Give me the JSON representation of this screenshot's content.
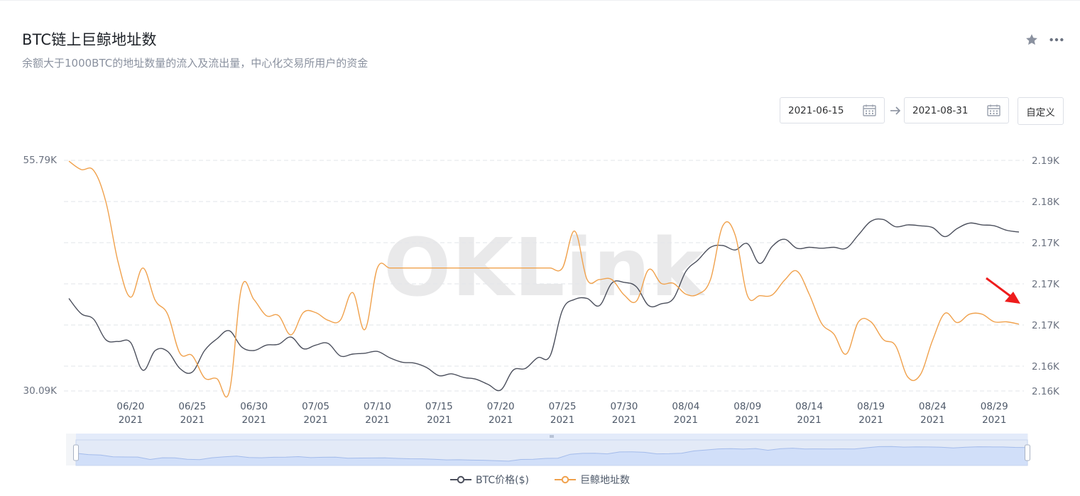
{
  "header": {
    "title": "BTC链上巨鲸地址数",
    "subtitle": "余额大于1000BTC的地址数量的流入及流出量，中心化交易所用户的资金"
  },
  "icons": {
    "star": "star-icon",
    "more": "more-icon",
    "calendar": "calendar-icon",
    "arrow": "arrow-right-icon"
  },
  "date_range": {
    "start": "2021-06-15",
    "end": "2021-08-31",
    "custom_label": "自定义"
  },
  "watermark": "OKLink",
  "colors": {
    "btc_price": "#4b4f5c",
    "whale": "#f0a14c",
    "grid": "#e2e5ea",
    "axis_text": "#6b7280",
    "annotation": "#ee1c1c",
    "zoom_fill": "#dbe6fb"
  },
  "chart_data": {
    "type": "line",
    "title": "",
    "ylim_left": [
      30090,
      55790
    ],
    "ylim_right": [
      2160,
      2190
    ],
    "y_left_ticks": [
      "55.79K",
      "30.09K"
    ],
    "y_right_ticks": [
      "2.19K",
      "2.18K",
      "2.17K",
      "2.17K",
      "2.17K",
      "2.16K",
      "2.16K"
    ],
    "x_ticks": [
      {
        "date": "06/20",
        "year": "2021"
      },
      {
        "date": "06/25",
        "year": "2021"
      },
      {
        "date": "06/30",
        "year": "2021"
      },
      {
        "date": "07/05",
        "year": "2021"
      },
      {
        "date": "07/10",
        "year": "2021"
      },
      {
        "date": "07/15",
        "year": "2021"
      },
      {
        "date": "07/20",
        "year": "2021"
      },
      {
        "date": "07/25",
        "year": "2021"
      },
      {
        "date": "07/30",
        "year": "2021"
      },
      {
        "date": "08/04",
        "year": "2021"
      },
      {
        "date": "08/09",
        "year": "2021"
      },
      {
        "date": "08/14",
        "year": "2021"
      },
      {
        "date": "08/19",
        "year": "2021"
      },
      {
        "date": "08/24",
        "year": "2021"
      },
      {
        "date": "08/29",
        "year": "2021"
      }
    ],
    "x": [
      "2021-06-15",
      "2021-06-16",
      "2021-06-17",
      "2021-06-18",
      "2021-06-19",
      "2021-06-20",
      "2021-06-21",
      "2021-06-22",
      "2021-06-23",
      "2021-06-24",
      "2021-06-25",
      "2021-06-26",
      "2021-06-27",
      "2021-06-28",
      "2021-06-29",
      "2021-06-30",
      "2021-07-01",
      "2021-07-02",
      "2021-07-03",
      "2021-07-04",
      "2021-07-05",
      "2021-07-06",
      "2021-07-07",
      "2021-07-08",
      "2021-07-09",
      "2021-07-10",
      "2021-07-11",
      "2021-07-12",
      "2021-07-13",
      "2021-07-14",
      "2021-07-15",
      "2021-07-16",
      "2021-07-17",
      "2021-07-18",
      "2021-07-19",
      "2021-07-20",
      "2021-07-21",
      "2021-07-22",
      "2021-07-23",
      "2021-07-24",
      "2021-07-25",
      "2021-07-26",
      "2021-07-27",
      "2021-07-28",
      "2021-07-29",
      "2021-07-30",
      "2021-07-31",
      "2021-08-01",
      "2021-08-02",
      "2021-08-03",
      "2021-08-04",
      "2021-08-05",
      "2021-08-06",
      "2021-08-07",
      "2021-08-08",
      "2021-08-09",
      "2021-08-10",
      "2021-08-11",
      "2021-08-12",
      "2021-08-13",
      "2021-08-14",
      "2021-08-15",
      "2021-08-16",
      "2021-08-17",
      "2021-08-18",
      "2021-08-19",
      "2021-08-20",
      "2021-08-21",
      "2021-08-22",
      "2021-08-23",
      "2021-08-24",
      "2021-08-25",
      "2021-08-26",
      "2021-08-27",
      "2021-08-28",
      "2021-08-29",
      "2021-08-30",
      "2021-08-31"
    ],
    "series": [
      {
        "name": "BTC价格($)",
        "axis": "left",
        "values": [
          40400,
          38700,
          38100,
          35800,
          35600,
          35500,
          32400,
          34600,
          34500,
          32600,
          32200,
          34600,
          35900,
          36800,
          35000,
          34600,
          35200,
          35300,
          36100,
          34800,
          35200,
          35400,
          34000,
          34200,
          34300,
          34500,
          33800,
          33300,
          33200,
          32700,
          31800,
          32000,
          31600,
          31400,
          30800,
          30200,
          32400,
          32600,
          33800,
          34000,
          39100,
          40300,
          40400,
          39600,
          42100,
          42200,
          41700,
          39600,
          39800,
          40400,
          43400,
          44700,
          46100,
          46300,
          45800,
          46500,
          44300,
          46200,
          47000,
          46000,
          46100,
          46000,
          46100,
          46000,
          47500,
          49000,
          49200,
          48400,
          48600,
          48500,
          48300,
          47300,
          48200,
          48800,
          48600,
          48500,
          48000,
          47800
        ]
      },
      {
        "name": "巨鲸地址数",
        "axis": "right",
        "values": [
          2189.9,
          2188.8,
          2188.7,
          2184.6,
          2176.7,
          2172.2,
          2176.0,
          2171.8,
          2170.0,
          2164.9,
          2164.6,
          2161.7,
          2161.6,
          2159.9,
          2173.5,
          2171.9,
          2169.8,
          2169.8,
          2167.3,
          2170.2,
          2170.2,
          2169.2,
          2169.2,
          2172.8,
          2168.0,
          2176.0,
          2176.0,
          2176.0,
          2176.0,
          2176.0,
          2176.0,
          2176.0,
          2176.0,
          2176.0,
          2176.0,
          2176.0,
          2176.0,
          2176.0,
          2176.0,
          2176.0,
          2176.0,
          2180.8,
          2174.5,
          2174.5,
          2174.5,
          2172.5,
          2171.7,
          2175.8,
          2174.0,
          2174.0,
          2172.6,
          2172.6,
          2174.5,
          2181.5,
          2180.3,
          2172.4,
          2172.4,
          2172.5,
          2174.4,
          2175.6,
          2172.6,
          2168.8,
          2167.4,
          2164.8,
          2169.0,
          2169.0,
          2166.7,
          2165.9,
          2161.8,
          2162.1,
          2166.6,
          2170.1,
          2168.9,
          2170.0,
          2170.0,
          2169.0,
          2169.0,
          2168.7
        ]
      }
    ],
    "legend": {
      "position": "bottom-center",
      "items": [
        "BTC价格($)",
        "巨鲸地址数"
      ]
    },
    "grid": true
  }
}
